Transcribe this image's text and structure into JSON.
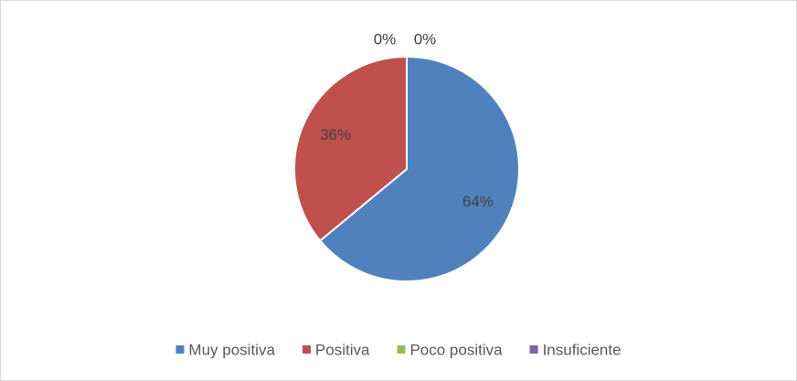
{
  "chart_data": {
    "type": "pie",
    "categories": [
      "Muy positiva",
      "Positiva",
      "Poco positiva",
      "Insuficiente"
    ],
    "values": [
      64,
      36,
      0,
      0
    ],
    "value_labels": [
      "64%",
      "36%",
      "0%",
      "0%"
    ],
    "colors": [
      "#4f81bd",
      "#c0504d",
      "#9bbb59",
      "#8064a2"
    ],
    "legend": "bottom"
  }
}
